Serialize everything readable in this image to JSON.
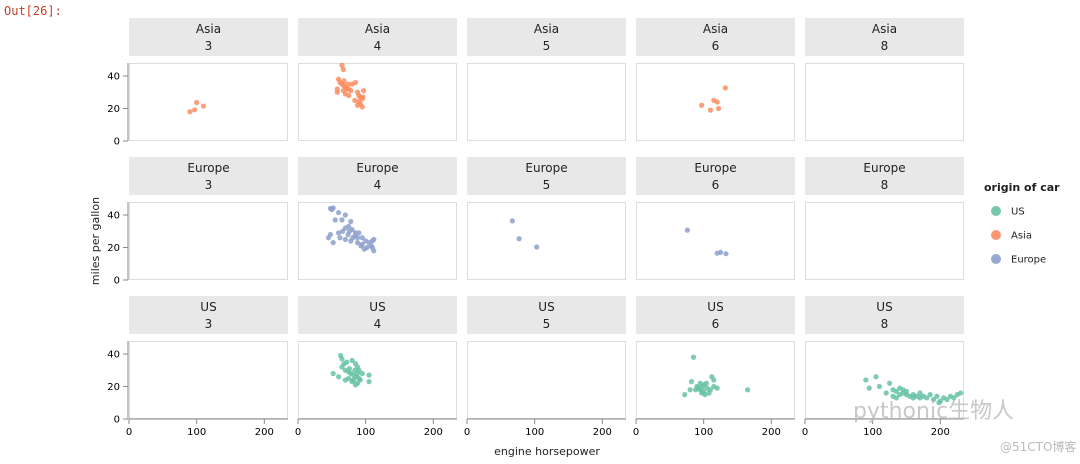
{
  "cell_prompt": "Out[26]:",
  "watermark": {
    "main": "pythonic生物人",
    "site": "@51CTO博客"
  },
  "chart_data": {
    "type": "scatter",
    "facet_rows": [
      "Asia",
      "Europe",
      "US"
    ],
    "facet_columns": [
      "3",
      "4",
      "5",
      "6",
      "8"
    ],
    "xlabel": "engine horsepower",
    "ylabel": "miles per gallon",
    "xlim": [
      0,
      235
    ],
    "ylim": [
      0,
      48
    ],
    "xticks": [
      0,
      100,
      200
    ],
    "yticks": [
      0,
      20,
      40
    ],
    "grid": false,
    "legend": {
      "title": "origin of car",
      "position": "right",
      "entries": [
        {
          "label": "US",
          "color": "#66c2a5"
        },
        {
          "label": "Asia",
          "color": "#fc8d62"
        },
        {
          "label": "Europe",
          "color": "#8da0cb"
        }
      ]
    },
    "panels": {
      "Asia": {
        "3": [
          [
            90,
            18
          ],
          [
            97,
            19.2
          ],
          [
            100,
            23.7
          ],
          [
            110,
            21.5
          ]
        ],
        "4": [
          [
            65,
            46.6
          ],
          [
            67,
            44
          ],
          [
            60,
            38
          ],
          [
            62,
            36
          ],
          [
            65,
            35
          ],
          [
            68,
            34
          ],
          [
            70,
            33
          ],
          [
            72,
            32
          ],
          [
            67,
            31
          ],
          [
            58,
            32
          ],
          [
            58,
            30
          ],
          [
            75,
            32
          ],
          [
            80,
            35
          ],
          [
            85,
            36
          ],
          [
            88,
            30
          ],
          [
            90,
            28
          ],
          [
            92,
            27
          ],
          [
            95,
            26
          ],
          [
            90,
            24
          ],
          [
            88,
            22
          ],
          [
            95,
            21
          ],
          [
            92,
            23
          ],
          [
            75,
            28
          ],
          [
            70,
            29
          ],
          [
            97,
            31
          ],
          [
            84,
            25
          ],
          [
            96,
            27
          ],
          [
            68,
            37
          ],
          [
            74,
            35
          ],
          [
            78,
            31
          ]
        ],
        "5": [],
        "6": [
          [
            97,
            22
          ],
          [
            110,
            19
          ],
          [
            115,
            25
          ],
          [
            120,
            24
          ],
          [
            122,
            20
          ],
          [
            132,
            32.7
          ]
        ],
        "8": []
      },
      "Europe": {
        "3": [],
        "4": [
          [
            48,
            44
          ],
          [
            50,
            43.4
          ],
          [
            52,
            44.3
          ],
          [
            60,
            41.5
          ],
          [
            70,
            40
          ],
          [
            55,
            37
          ],
          [
            78,
            36
          ],
          [
            65,
            37
          ],
          [
            75,
            33
          ],
          [
            70,
            32
          ],
          [
            66,
            30
          ],
          [
            80,
            31
          ],
          [
            85,
            29
          ],
          [
            90,
            29
          ],
          [
            74,
            28
          ],
          [
            84,
            27
          ],
          [
            88,
            26
          ],
          [
            95,
            26
          ],
          [
            100,
            24
          ],
          [
            105,
            23
          ],
          [
            110,
            24
          ],
          [
            112,
            25
          ],
          [
            110,
            20
          ],
          [
            112,
            18
          ],
          [
            98,
            19
          ],
          [
            93,
            21
          ],
          [
            88,
            23
          ],
          [
            78,
            24
          ],
          [
            70,
            25
          ],
          [
            62,
            26
          ],
          [
            48,
            28
          ],
          [
            45,
            26
          ],
          [
            52,
            23
          ],
          [
            60,
            29
          ],
          [
            95,
            22
          ],
          [
            102,
            20
          ],
          [
            108,
            21
          ],
          [
            81,
            26
          ],
          [
            76,
            30
          ]
        ],
        "5": [
          [
            67,
            36.4
          ],
          [
            77,
            25.4
          ],
          [
            103,
            20.3
          ]
        ],
        "6": [
          [
            76,
            30.7
          ],
          [
            120,
            16.5
          ],
          [
            125,
            17
          ],
          [
            133,
            16.2
          ]
        ],
        "8": []
      },
      "US": {
        "3": [],
        "4": [
          [
            63,
            39
          ],
          [
            65,
            37
          ],
          [
            68,
            34
          ],
          [
            72,
            35
          ],
          [
            80,
            36
          ],
          [
            85,
            34
          ],
          [
            88,
            32
          ],
          [
            65,
            32
          ],
          [
            70,
            30
          ],
          [
            75,
            29
          ],
          [
            78,
            28
          ],
          [
            82,
            27
          ],
          [
            86,
            26
          ],
          [
            90,
            25
          ],
          [
            92,
            24
          ],
          [
            88,
            22
          ],
          [
            85,
            21
          ],
          [
            80,
            23
          ],
          [
            75,
            25
          ],
          [
            70,
            24
          ],
          [
            60,
            26
          ],
          [
            52,
            28
          ],
          [
            90,
            30
          ],
          [
            95,
            28
          ],
          [
            105,
            27
          ],
          [
            105,
            23
          ],
          [
            84,
            30
          ],
          [
            88,
            28
          ],
          [
            76,
            31
          ],
          [
            82,
            24
          ]
        ],
        "6": [
          [
            85,
            38
          ],
          [
            72,
            15
          ],
          [
            80,
            18
          ],
          [
            82,
            23
          ],
          [
            90,
            20
          ],
          [
            95,
            22
          ],
          [
            100,
            21
          ],
          [
            105,
            19
          ],
          [
            100,
            17
          ],
          [
            95,
            18
          ],
          [
            110,
            18
          ],
          [
            115,
            20
          ],
          [
            115,
            24
          ],
          [
            112,
            26
          ],
          [
            120,
            19
          ],
          [
            165,
            18
          ],
          [
            97,
            16
          ],
          [
            102,
            15
          ],
          [
            92,
            19
          ],
          [
            108,
            16
          ],
          [
            88,
            18
          ],
          [
            104,
            22
          ],
          [
            98,
            20
          ]
        ],
        "5": [],
        "8": [
          [
            90,
            24
          ],
          [
            105,
            26
          ],
          [
            95,
            19
          ],
          [
            110,
            20
          ],
          [
            125,
            22
          ],
          [
            130,
            18
          ],
          [
            135,
            17
          ],
          [
            140,
            19
          ],
          [
            145,
            16
          ],
          [
            150,
            15
          ],
          [
            155,
            14
          ],
          [
            160,
            15
          ],
          [
            165,
            14
          ],
          [
            170,
            13
          ],
          [
            175,
            14
          ],
          [
            180,
            13
          ],
          [
            190,
            12
          ],
          [
            195,
            14
          ],
          [
            200,
            11
          ],
          [
            205,
            13
          ],
          [
            210,
            12
          ],
          [
            215,
            14
          ],
          [
            220,
            13
          ],
          [
            225,
            15
          ],
          [
            230,
            16
          ],
          [
            140,
            15
          ],
          [
            145,
            18
          ],
          [
            150,
            17
          ],
          [
            130,
            14
          ],
          [
            120,
            16
          ],
          [
            135,
            13
          ],
          [
            185,
            15
          ],
          [
            198,
            10
          ],
          [
            160,
            13
          ],
          [
            170,
            16
          ]
        ]
      }
    }
  }
}
